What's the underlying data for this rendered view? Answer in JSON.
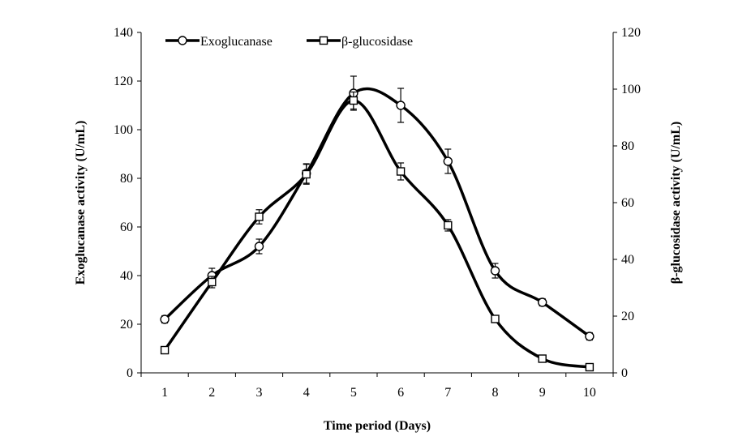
{
  "chart_data": {
    "type": "line",
    "categories": [
      "1",
      "2",
      "3",
      "4",
      "5",
      "6",
      "7",
      "8",
      "9",
      "10"
    ],
    "x": [
      1,
      2,
      3,
      4,
      5,
      6,
      7,
      8,
      9,
      10
    ],
    "xlabel": "Time period (Days)",
    "ylabel_left": "Exoglucanase activity (U/mL)",
    "ylabel_right": "β-glucosidase activity (U/mL)",
    "ylim_left": [
      0,
      140
    ],
    "ylim_right": [
      0,
      120
    ],
    "yticks_left": [
      "0",
      "20",
      "40",
      "60",
      "80",
      "100",
      "120",
      "140"
    ],
    "yticks_right": [
      "0",
      "20",
      "40",
      "60",
      "80",
      "100",
      "120"
    ],
    "grid": false,
    "legend_position": "top-left",
    "series": [
      {
        "name": "Exoglucanase",
        "axis": "left",
        "marker": "circle",
        "values": [
          22,
          40,
          52,
          82,
          115,
          110,
          87,
          42,
          29,
          15
        ],
        "errors": [
          1.5,
          3,
          3,
          4,
          7,
          7,
          5,
          3,
          1.5,
          1.5
        ]
      },
      {
        "name": "β-glucosidase",
        "axis": "right",
        "marker": "square",
        "values": [
          8,
          32,
          55,
          70,
          96,
          71,
          52,
          19,
          5,
          2
        ],
        "errors": [
          0.8,
          2,
          2.5,
          3.5,
          3,
          3,
          2,
          1,
          0.5,
          0.5
        ]
      }
    ]
  }
}
